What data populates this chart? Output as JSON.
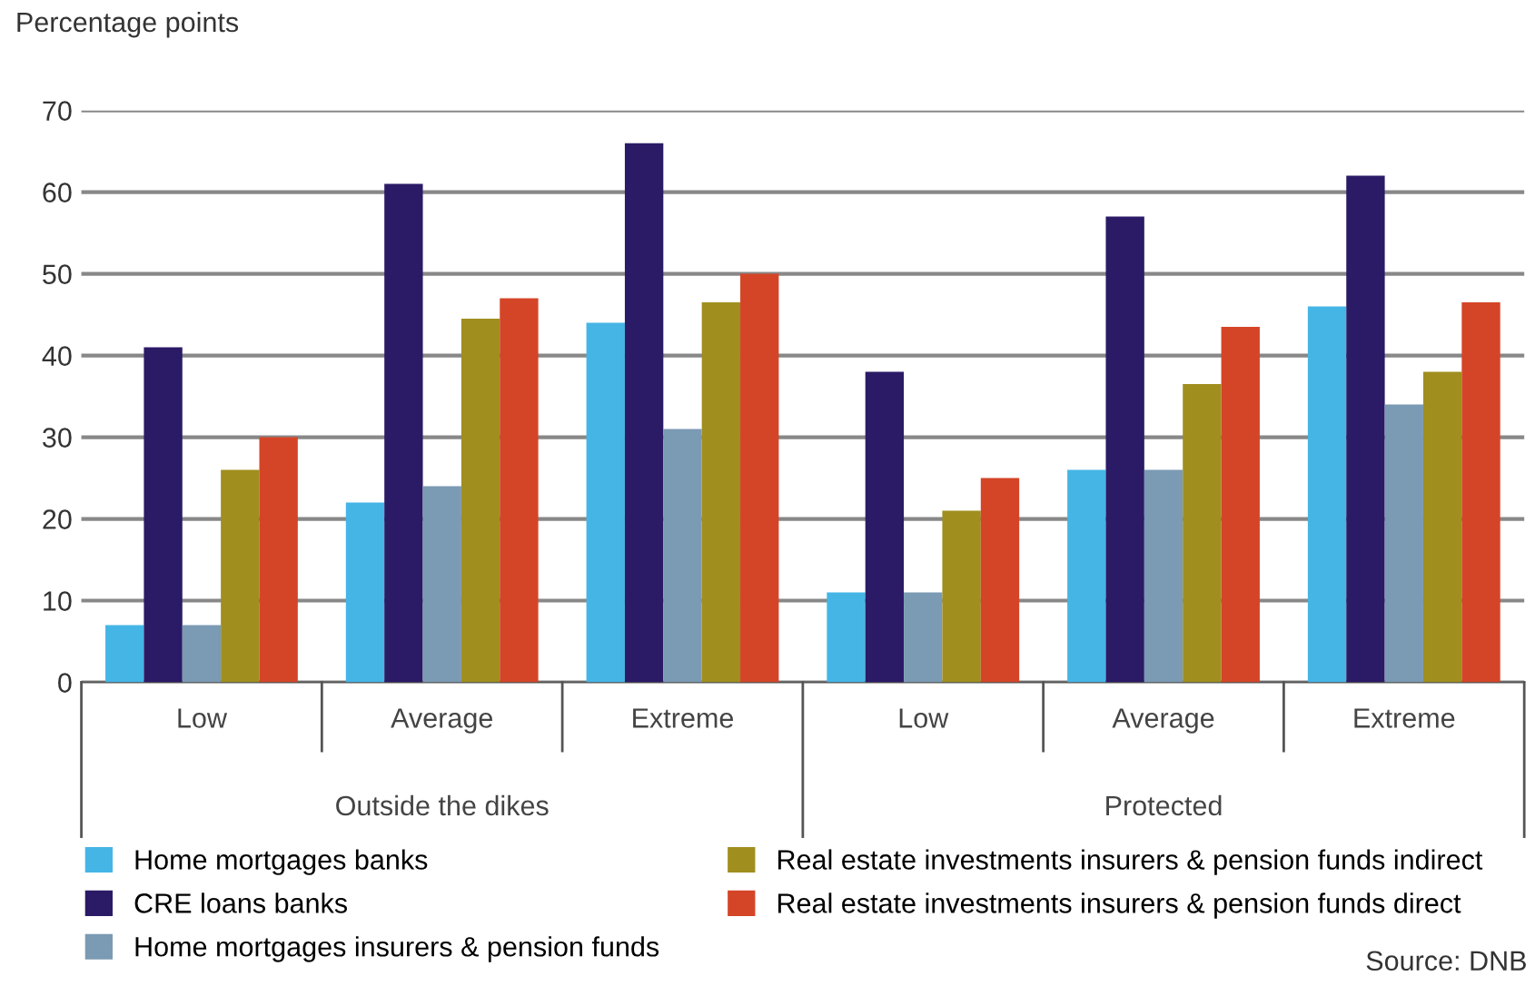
{
  "chart_data": {
    "type": "bar",
    "ylabel": "Percentage points",
    "categories": [
      "Low",
      "Average",
      "Extreme",
      "Low",
      "Average",
      "Extreme"
    ],
    "series": [
      {
        "name": "Home mortgages banks",
        "color": "#45b5e6",
        "values": [
          7,
          22,
          44,
          11,
          26,
          46
        ]
      },
      {
        "name": "CRE loans banks",
        "color": "#2b1a66",
        "values": [
          41,
          61,
          66,
          38,
          57,
          62
        ]
      },
      {
        "name": "Home mortgages insurers & pension funds",
        "color": "#7b9ab3",
        "values": [
          7,
          24,
          31,
          11,
          26,
          34
        ]
      },
      {
        "name": "Real estate investments insurers & pension funds indirect",
        "color": "#a08e1f",
        "values": [
          26,
          44.5,
          46.5,
          21,
          36.5,
          38
        ]
      },
      {
        "name": "Real estate investments insurers & pension funds direct",
        "color": "#d44527",
        "values": [
          30,
          47,
          50,
          25,
          43.5,
          46.5
        ]
      }
    ],
    "ylim": [
      0,
      70
    ],
    "yticks": [
      0,
      10,
      20,
      30,
      40,
      50,
      60,
      70
    ],
    "grid": "y",
    "legend": "bottom",
    "annotations": [
      "Outside the dikes",
      "Protected",
      "Source: DNB"
    ]
  }
}
